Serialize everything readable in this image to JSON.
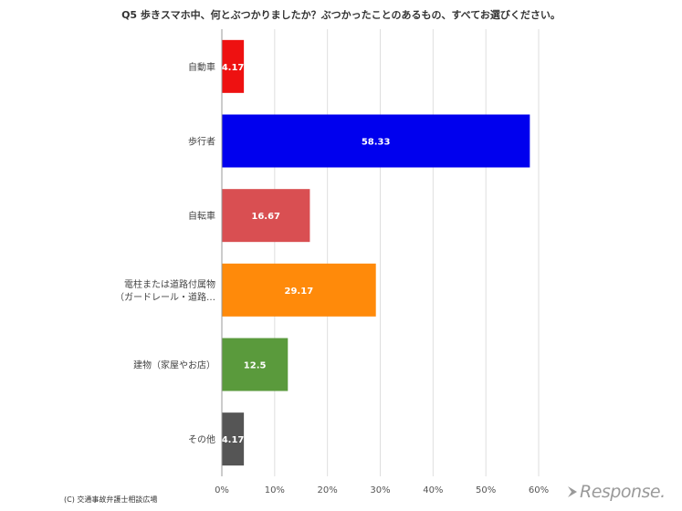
{
  "chart_data": {
    "type": "bar",
    "orientation": "horizontal",
    "title": "Q5 歩きスマホ中、何とぶつかりましたか？ぶつかったことのあるもの、すべてお選びください。",
    "categories": [
      [
        "自動車"
      ],
      [
        "歩行者"
      ],
      [
        "自転車"
      ],
      [
        "電柱または道路付属物",
        "（ガードレール・道路…"
      ],
      [
        "建物（家屋やお店）"
      ],
      [
        "その他"
      ]
    ],
    "values": [
      4.17,
      58.33,
      16.67,
      29.17,
      12.5,
      4.17
    ],
    "data_labels": [
      "4.17",
      "58.33",
      "16.67",
      "29.17",
      "12.5",
      "4.17"
    ],
    "colors": [
      "#ee1111",
      "#0000ee",
      "#d94f52",
      "#ff8a0a",
      "#5a9a3c",
      "#555555"
    ],
    "xlim": [
      0,
      60
    ],
    "xticks": [
      "0%",
      "10%",
      "20%",
      "30%",
      "40%",
      "50%",
      "60%"
    ],
    "xtick_values": [
      0,
      10,
      20,
      30,
      40,
      50,
      60
    ],
    "grid": true,
    "legend": "none"
  },
  "footer": {
    "credit": "(C) 交通事故弁護士相談広場",
    "watermark": "Response."
  }
}
